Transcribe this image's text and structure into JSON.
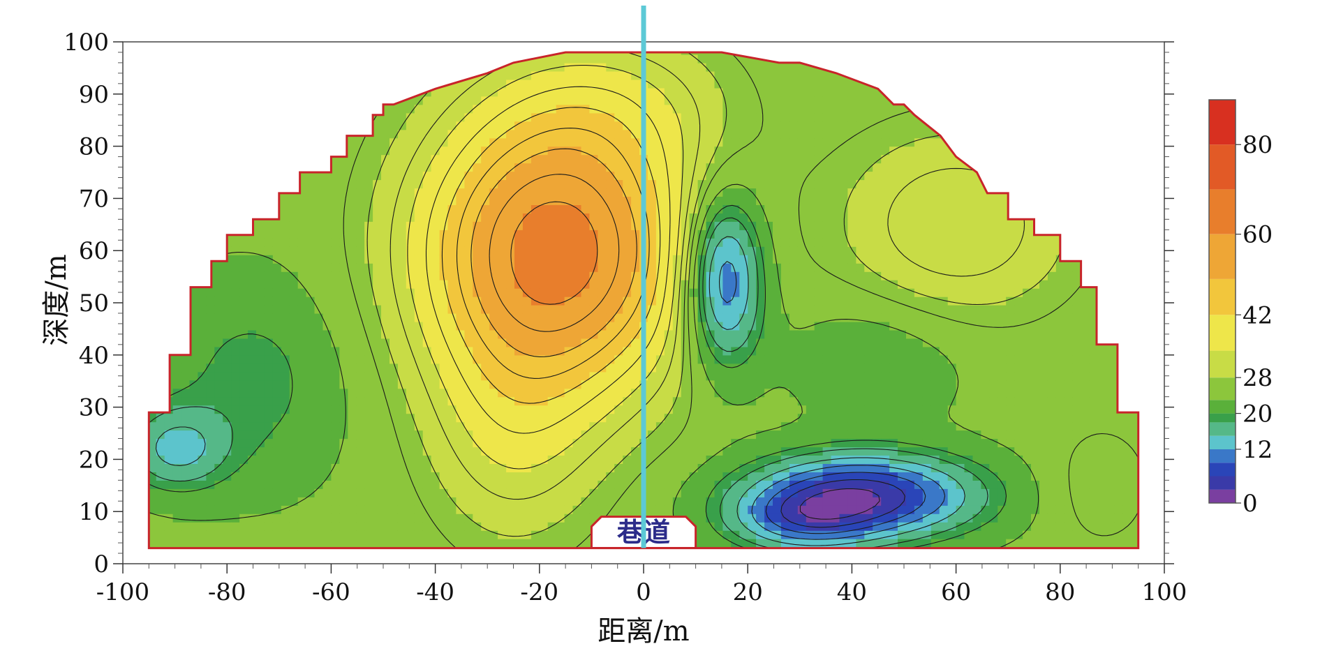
{
  "chart_data": {
    "type": "heatmap",
    "title": "",
    "xlabel": "距离/m",
    "ylabel": "深度/m",
    "xlim": [
      -100,
      100
    ],
    "ylim": [
      0,
      100
    ],
    "x_ticks": [
      -100,
      -80,
      -60,
      -40,
      -20,
      0,
      20,
      40,
      60,
      80,
      100
    ],
    "y_ticks": [
      0,
      10,
      20,
      30,
      40,
      50,
      60,
      70,
      80,
      90,
      100
    ],
    "colorbar": {
      "range": [
        0,
        90
      ],
      "tick_labels": [
        0,
        12,
        20,
        28,
        42,
        60,
        80
      ],
      "colors": [
        "#7a3fa0",
        "#3a3aa8",
        "#2a45b8",
        "#3a78c8",
        "#5cc4cc",
        "#55b888",
        "#39a04a",
        "#5ab03a",
        "#8cc63c",
        "#c8dc46",
        "#eee64a",
        "#f2c63c",
        "#eea636",
        "#e87e2c",
        "#e25a26",
        "#d83020"
      ]
    },
    "annotation": "巷道",
    "features": [
      {
        "name": "high-zone",
        "x": -15,
        "y": 60,
        "value": 65
      },
      {
        "name": "low-zone-upper",
        "x": 15,
        "y": 55,
        "value": 5
      },
      {
        "name": "low-zone-lower",
        "x": 45,
        "y": 12,
        "value": 3
      },
      {
        "name": "low-zone-left",
        "x": -90,
        "y": 22,
        "value": 13
      }
    ],
    "boundary": [
      [
        -95,
        3
      ],
      [
        -95,
        29
      ],
      [
        -91,
        29
      ],
      [
        -91,
        40
      ],
      [
        -87,
        40
      ],
      [
        -87,
        53
      ],
      [
        -83,
        53
      ],
      [
        -83,
        58
      ],
      [
        -80,
        58
      ],
      [
        -80,
        63
      ],
      [
        -75,
        63
      ],
      [
        -75,
        66
      ],
      [
        -70,
        66
      ],
      [
        -70,
        71
      ],
      [
        -66,
        71
      ],
      [
        -66,
        75
      ],
      [
        -60,
        75
      ],
      [
        -60,
        78
      ],
      [
        -57,
        78
      ],
      [
        -57,
        82
      ],
      [
        -52,
        82
      ],
      [
        -52,
        86
      ],
      [
        -50,
        86
      ],
      [
        -50,
        88
      ],
      [
        -48,
        88
      ],
      [
        -40,
        91
      ],
      [
        -30,
        94
      ],
      [
        -25,
        96
      ],
      [
        -15,
        98
      ],
      [
        15,
        98
      ],
      [
        26,
        96
      ],
      [
        30,
        96
      ],
      [
        37,
        94
      ],
      [
        45,
        91
      ],
      [
        48,
        88
      ],
      [
        50,
        88
      ],
      [
        52,
        86
      ],
      [
        57,
        82
      ],
      [
        60,
        78
      ],
      [
        64,
        75
      ],
      [
        66,
        71
      ],
      [
        70,
        71
      ],
      [
        70,
        66
      ],
      [
        75,
        66
      ],
      [
        75,
        63
      ],
      [
        80,
        63
      ],
      [
        80,
        58
      ],
      [
        84,
        58
      ],
      [
        84,
        53
      ],
      [
        87,
        53
      ],
      [
        87,
        42
      ],
      [
        91,
        42
      ],
      [
        91,
        29
      ],
      [
        95,
        29
      ],
      [
        95,
        3
      ]
    ],
    "borehole_x": 0,
    "tunnel": {
      "x_from": -10,
      "x_to": 10,
      "top": 9
    }
  }
}
